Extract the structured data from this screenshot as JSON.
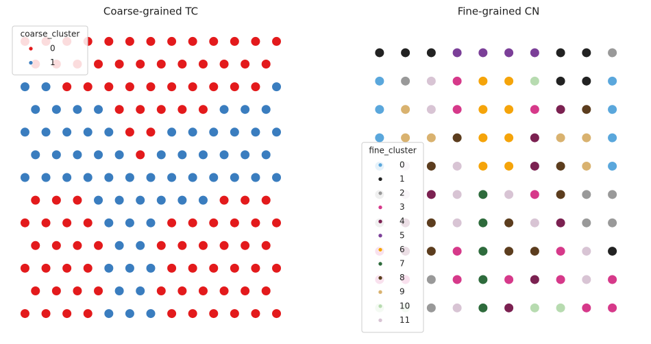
{
  "chart_data": [
    {
      "type": "scatter",
      "title": "Coarse-grained TC",
      "legend_title": "coarse_cluster",
      "legend": "upper left",
      "xlim": [
        0,
        102
      ],
      "ylim": [
        0,
        102
      ],
      "series": [
        {
          "name": "0",
          "color": "#e31a1c",
          "x": [
            3,
            11,
            19,
            27,
            59,
            67,
            75,
            83,
            91,
            99,
            7,
            15,
            23,
            31,
            55,
            63,
            71,
            79,
            87,
            95,
            3,
            11,
            19,
            27,
            59,
            67,
            75,
            83,
            91,
            99,
            7,
            15,
            23,
            31,
            55,
            63,
            71,
            79,
            87,
            95,
            3,
            11,
            19,
            27,
            59,
            67,
            75,
            83,
            91,
            99,
            7,
            15,
            23,
            79,
            87,
            95,
            47,
            43,
            51,
            39,
            47,
            55,
            63,
            71,
            19,
            27,
            35,
            43,
            51,
            59,
            67,
            75,
            83,
            91,
            7,
            15,
            23,
            31,
            39,
            47,
            55,
            63,
            71,
            79,
            87,
            95,
            3,
            11,
            19,
            27,
            35,
            43,
            51,
            59,
            67,
            75,
            83,
            91,
            99
          ],
          "y": [
            3,
            3,
            3,
            3,
            3,
            3,
            3,
            3,
            3,
            3,
            11,
            11,
            11,
            11,
            11,
            11,
            11,
            11,
            11,
            11,
            19,
            19,
            19,
            19,
            19,
            19,
            19,
            19,
            19,
            19,
            27,
            27,
            27,
            27,
            27,
            27,
            27,
            27,
            27,
            27,
            35,
            35,
            35,
            35,
            35,
            35,
            35,
            35,
            35,
            35,
            43,
            43,
            43,
            43,
            43,
            43,
            59,
            67,
            67,
            75,
            75,
            75,
            75,
            75,
            83,
            83,
            83,
            83,
            83,
            83,
            83,
            83,
            83,
            83,
            91,
            91,
            91,
            91,
            91,
            91,
            91,
            91,
            91,
            91,
            91,
            91,
            99,
            99,
            99,
            99,
            99,
            99,
            99,
            99,
            99,
            99,
            99,
            99,
            99
          ]
        },
        {
          "name": "1",
          "color": "#3a7dbf",
          "x": [
            35,
            43,
            51,
            39,
            47,
            35,
            43,
            51,
            39,
            47,
            35,
            43,
            51,
            31,
            39,
            47,
            55,
            63,
            71,
            3,
            11,
            19,
            27,
            35,
            43,
            51,
            59,
            67,
            75,
            83,
            91,
            99,
            7,
            15,
            23,
            31,
            39,
            55,
            63,
            71,
            79,
            87,
            95,
            3,
            11,
            19,
            27,
            35,
            59,
            67,
            75,
            83,
            91,
            99,
            7,
            15,
            23,
            31,
            79,
            87,
            95,
            3,
            11,
            99
          ],
          "y": [
            3,
            3,
            3,
            11,
            11,
            19,
            19,
            19,
            27,
            27,
            35,
            35,
            35,
            43,
            43,
            43,
            43,
            43,
            43,
            51,
            51,
            51,
            51,
            51,
            51,
            51,
            51,
            51,
            51,
            51,
            51,
            51,
            59,
            59,
            59,
            59,
            59,
            59,
            59,
            59,
            59,
            59,
            59,
            67,
            67,
            67,
            67,
            67,
            67,
            67,
            67,
            67,
            67,
            67,
            75,
            75,
            75,
            75,
            75,
            75,
            75,
            83,
            83,
            83
          ]
        }
      ]
    },
    {
      "type": "scatter",
      "title": "Fine-grained CN",
      "legend_title": "fine_cluster",
      "legend": "lower left",
      "xlim": [
        0,
        102
      ],
      "ylim": [
        0,
        102
      ],
      "series": [
        {
          "name": "0",
          "color": "#5aa7dc",
          "x": [
            5,
            95,
            5,
            95,
            5,
            95,
            5,
            95
          ],
          "y": [
            85,
            85,
            75,
            75,
            65,
            65,
            55,
            55
          ]
        },
        {
          "name": "1",
          "color": "#222222",
          "x": [
            5,
            15,
            25,
            75,
            85,
            75,
            85,
            95
          ],
          "y": [
            95,
            95,
            95,
            95,
            95,
            85,
            85,
            25
          ]
        },
        {
          "name": "2",
          "color": "#999999",
          "x": [
            95,
            15,
            5,
            85,
            95,
            5,
            85,
            95,
            25,
            25
          ],
          "y": [
            95,
            85,
            45,
            45,
            45,
            35,
            35,
            35,
            15,
            5
          ]
        },
        {
          "name": "3",
          "color": "#d6398a",
          "x": [
            35,
            35,
            65,
            65,
            5,
            35,
            75,
            5,
            15,
            35,
            55,
            75,
            95,
            85,
            95
          ],
          "y": [
            85,
            75,
            75,
            45,
            25,
            25,
            25,
            15,
            15,
            15,
            15,
            15,
            15,
            5,
            5
          ]
        },
        {
          "name": "4",
          "color": "#7b2151",
          "x": [
            75,
            65,
            65,
            25,
            15,
            75,
            15,
            65,
            55
          ],
          "y": [
            75,
            65,
            55,
            45,
            35,
            35,
            25,
            15,
            5
          ]
        },
        {
          "name": "5",
          "color": "#7b3f98",
          "x": [
            35,
            45,
            55,
            65
          ],
          "y": [
            95,
            95,
            95,
            95
          ]
        },
        {
          "name": "6",
          "color": "#f5a40a",
          "x": [
            45,
            55,
            45,
            55,
            45,
            55,
            45,
            55
          ],
          "y": [
            85,
            85,
            75,
            75,
            65,
            65,
            55,
            55
          ]
        },
        {
          "name": "7",
          "color": "#2e6b3c",
          "x": [
            45,
            45,
            45,
            45,
            45
          ],
          "y": [
            45,
            35,
            25,
            15,
            5
          ]
        },
        {
          "name": "8",
          "color": "#5c3d1e",
          "x": [
            85,
            35,
            25,
            75,
            75,
            25,
            55,
            25,
            55,
            65
          ],
          "y": [
            75,
            65,
            55,
            55,
            45,
            35,
            35,
            25,
            25,
            25
          ]
        },
        {
          "name": "9",
          "color": "#d9b26f",
          "x": [
            15,
            15,
            25,
            75,
            85,
            85
          ],
          "y": [
            75,
            65,
            65,
            65,
            65,
            55
          ]
        },
        {
          "name": "10",
          "color": "#b7dbb0",
          "x": [
            65,
            5,
            15,
            65,
            75
          ],
          "y": [
            85,
            5,
            5,
            5,
            5
          ]
        },
        {
          "name": "11",
          "color": "#d8c4d4",
          "x": [
            25,
            25,
            15,
            35,
            15,
            35,
            55,
            35,
            65,
            85,
            85,
            35
          ],
          "y": [
            85,
            75,
            55,
            55,
            45,
            45,
            45,
            35,
            35,
            25,
            15,
            5
          ]
        }
      ]
    }
  ]
}
